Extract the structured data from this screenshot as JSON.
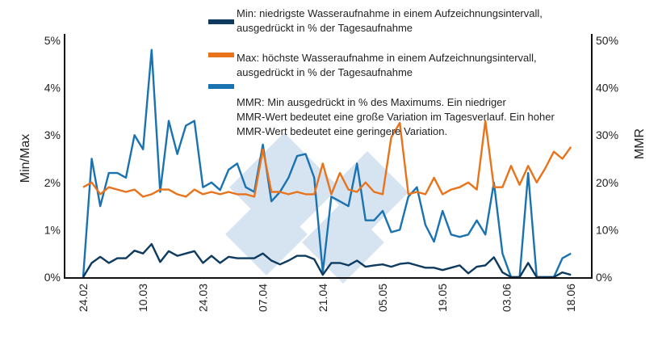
{
  "chart_data": {
    "type": "line",
    "title": "",
    "ylabel_left": "Min/Max",
    "ylabel_right": "MMR",
    "ylim_left": [
      0,
      5
    ],
    "ylim_right": [
      0,
      50
    ],
    "yticks_left": [
      "0%",
      "1%",
      "2%",
      "3%",
      "4%",
      "5%"
    ],
    "yticks_right": [
      "0%",
      "10%",
      "20%",
      "30%",
      "40%",
      "50%"
    ],
    "xticks": [
      "24.02",
      "10.03",
      "24.03",
      "07.04",
      "21.04",
      "05.05",
      "19.05",
      "03.06",
      "18.06"
    ],
    "grid": false,
    "legend_placement": "top",
    "x": [
      "24.02",
      "26.02",
      "28.02",
      "02.03",
      "04.03",
      "06.03",
      "08.03",
      "10.03",
      "12.03",
      "14.03",
      "16.03",
      "18.03",
      "20.03",
      "22.03",
      "24.03",
      "26.03",
      "28.03",
      "30.03",
      "01.04",
      "03.04",
      "05.04",
      "07.04",
      "09.04",
      "11.04",
      "13.04",
      "15.04",
      "17.04",
      "19.04",
      "21.04",
      "23.04",
      "25.04",
      "27.04",
      "29.04",
      "01.05",
      "03.05",
      "05.05",
      "07.05",
      "09.05",
      "11.05",
      "13.05",
      "15.05",
      "17.05",
      "19.05",
      "21.05",
      "23.05",
      "25.05",
      "27.05",
      "29.05",
      "31.05",
      "02.06",
      "04.06",
      "06.06",
      "08.06",
      "10.06",
      "12.06",
      "14.06",
      "16.06",
      "18.06"
    ],
    "series": [
      {
        "name": "Min: niedrigste Wasseraufnahme in einem Aufzeichnungsintervall, ausgedrückt in % der Tagesaufnahme",
        "axis": "left",
        "color": "#0d3a5e",
        "values": [
          0,
          0.3,
          0.43,
          0.3,
          0.4,
          0.4,
          0.56,
          0.5,
          0.7,
          0.32,
          0.55,
          0.45,
          0.5,
          0.55,
          0.3,
          0.45,
          0.3,
          0.43,
          0.4,
          0.4,
          0.4,
          0.5,
          0.35,
          0.27,
          0.35,
          0.45,
          0.45,
          0.38,
          0.05,
          0.3,
          0.3,
          0.25,
          0.35,
          0.22,
          0.25,
          0.27,
          0.22,
          0.28,
          0.3,
          0.25,
          0.2,
          0.2,
          0.15,
          0.2,
          0.25,
          0.08,
          0.22,
          0.25,
          0.42,
          0.1,
          0,
          0,
          0.3,
          0,
          0,
          0,
          0.1,
          0.05
        ]
      },
      {
        "name": "Max: höchste Wasseraufnahme in einem Aufzeichnungsintervall, ausgedrückt in % der Tagesaufnahme",
        "axis": "left",
        "color": "#e8731a",
        "values": [
          1.9,
          2.0,
          1.75,
          1.9,
          1.85,
          1.8,
          1.85,
          1.7,
          1.75,
          1.85,
          1.85,
          1.75,
          1.7,
          1.85,
          1.75,
          1.8,
          1.75,
          1.8,
          1.75,
          1.75,
          1.7,
          2.7,
          1.8,
          1.8,
          1.75,
          1.8,
          1.75,
          1.75,
          2.4,
          1.75,
          2.2,
          1.85,
          1.8,
          2.0,
          1.8,
          1.75,
          2.95,
          3.26,
          1.75,
          1.8,
          1.75,
          2.1,
          1.75,
          1.85,
          1.9,
          2.0,
          1.85,
          3.3,
          1.9,
          1.9,
          2.35,
          1.95,
          2.35,
          2.0,
          2.3,
          2.65,
          2.5,
          2.75
        ]
      },
      {
        "name": "MMR: Min ausgedrückt in % des Maximums. Ein niedriger MMR-Wert bedeutet eine große Variation im Tagesverlauf. Ein hoher MMR-Wert bedeutet eine geringere Variation.",
        "axis": "right",
        "color": "#1a72b0",
        "values": [
          0,
          25,
          15,
          22,
          22,
          21,
          30,
          27,
          48,
          18,
          33,
          26,
          32,
          33,
          19,
          20,
          18.4,
          22.7,
          24,
          19,
          18,
          28,
          16,
          18,
          21,
          25.6,
          26,
          21,
          1,
          17,
          16,
          15,
          24,
          12,
          12,
          14,
          9.5,
          10,
          17,
          19,
          11,
          7.5,
          14,
          9,
          8.5,
          9,
          12,
          9,
          20,
          5,
          0,
          0,
          22,
          0,
          0,
          0,
          4,
          5
        ]
      }
    ]
  },
  "legend": {
    "min_lines": [
      "Min: niedrigste Wasseraufnahme in einem Aufzeichnungsintervall,",
      "ausgedrückt in % der Tagesaufnahme"
    ],
    "max_lines": [
      "Max: höchste Wasseraufnahme in einem Aufzeichnungsintervall,",
      "ausgedrückt in % der Tagesaufnahme"
    ],
    "mmr_lines": [
      "MMR: Min ausgedrückt in % des Maximums. Ein niedriger",
      "MMR-Wert bedeutet eine große Variation im Tagesverlauf. Ein hoher",
      "MMR-Wert bedeutet eine geringere Variation."
    ]
  },
  "watermark": {
    "text": "3",
    "color": "#d6e3f1"
  }
}
